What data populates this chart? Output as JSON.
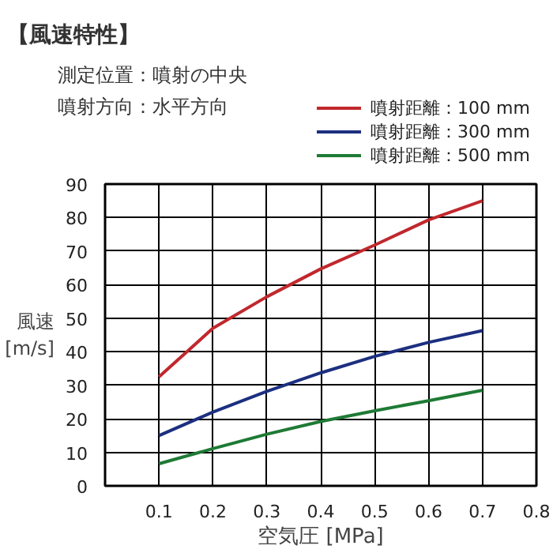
{
  "chart_data": {
    "type": "line",
    "title": "【風速特性】",
    "annotations": [
      "測定位置：噴射の中央",
      "噴射方向：水平方向"
    ],
    "xlabel": "空気圧 [MPa]",
    "ylabel": "風速\n[m/s]",
    "x": [
      0.1,
      0.2,
      0.3,
      0.4,
      0.5,
      0.6,
      0.7
    ],
    "series": [
      {
        "name": "噴射距離：100 mm",
        "color": "#c0282d",
        "values": [
          32.5,
          47,
          56.4,
          64.7,
          71.8,
          79.3,
          85
        ]
      },
      {
        "name": "噴射距離：300 mm",
        "color": "#1c2f80",
        "values": [
          15,
          22,
          28.2,
          33.7,
          38.6,
          42.8,
          46.3
        ]
      },
      {
        "name": "噴射距離：500 mm",
        "color": "#1e7a35",
        "values": [
          6.6,
          11.1,
          15.4,
          19.2,
          22.4,
          25.4,
          28.5
        ]
      }
    ],
    "xlim": [
      0,
      0.8
    ],
    "ylim": [
      0,
      90
    ],
    "xticks": [
      0.1,
      0.2,
      0.3,
      0.4,
      0.5,
      0.6,
      0.7,
      0.8
    ],
    "yticks": [
      0,
      10,
      20,
      30,
      40,
      50,
      60,
      70,
      80,
      90
    ],
    "grid": true,
    "legend": "top right"
  }
}
